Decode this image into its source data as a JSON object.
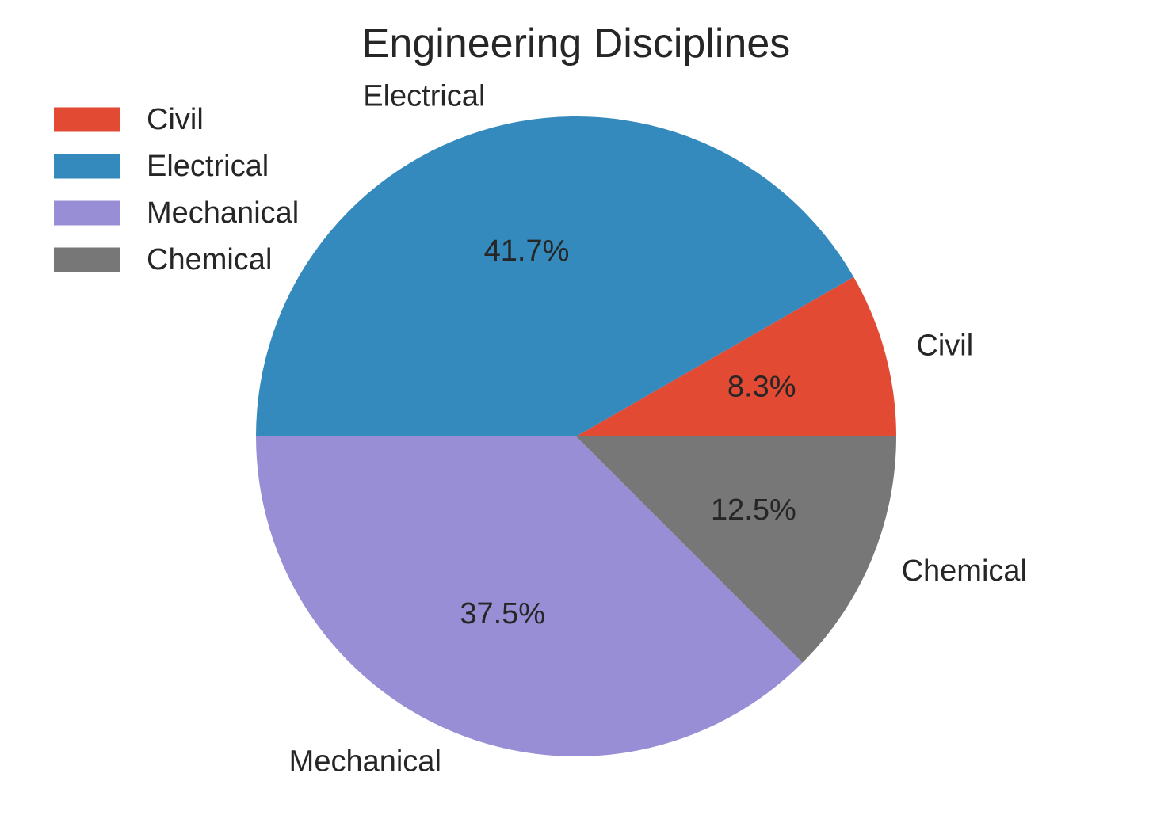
{
  "chart_data": {
    "type": "pie",
    "title": "Engineering Disciplines",
    "categories": [
      "Civil",
      "Electrical",
      "Mechanical",
      "Chemical"
    ],
    "values": [
      8.3,
      41.7,
      37.5,
      12.5
    ],
    "percent_labels": [
      "8.3%",
      "41.7%",
      "37.5%",
      "12.5%"
    ],
    "colors": [
      "#E24A33",
      "#348ABD",
      "#988ED5",
      "#777777"
    ],
    "start_angle_deg": 0,
    "direction": "counterclockwise",
    "legend": {
      "placement": "upper-left",
      "entries": [
        "Civil",
        "Electrical",
        "Mechanical",
        "Chemical"
      ]
    }
  }
}
